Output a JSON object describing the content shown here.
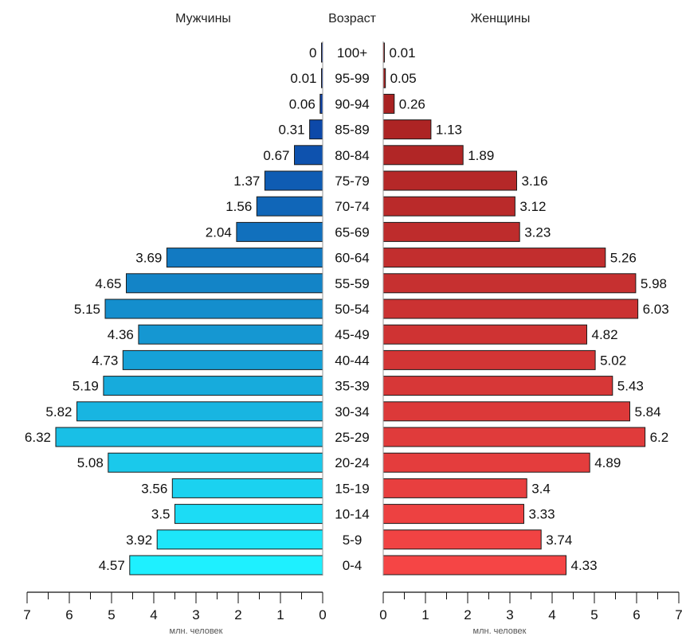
{
  "chart_data": {
    "type": "bar",
    "orientation": "horizontal",
    "layout": "population-pyramid",
    "headers": {
      "left": "Мужчины",
      "center": "Возраст",
      "right": "Женщины"
    },
    "categories": [
      "100+",
      "95-99",
      "90-94",
      "85-89",
      "80-84",
      "75-79",
      "70-74",
      "65-69",
      "60-64",
      "55-59",
      "50-54",
      "45-49",
      "40-44",
      "35-39",
      "30-34",
      "25-29",
      "20-24",
      "15-19",
      "10-14",
      "5-9",
      "0-4"
    ],
    "series": [
      {
        "name": "Мужчины",
        "values": [
          0,
          0.01,
          0.06,
          0.31,
          0.67,
          1.37,
          1.56,
          2.04,
          3.69,
          4.65,
          5.15,
          4.36,
          4.73,
          5.19,
          5.82,
          6.32,
          5.08,
          3.56,
          3.5,
          3.92,
          4.57
        ],
        "labels": [
          "0",
          "0.01",
          "0.06",
          "0.31",
          "0.67",
          "1.37",
          "1.56",
          "2.04",
          "3.69",
          "4.65",
          "5.15",
          "4.36",
          "4.73",
          "5.19",
          "5.82",
          "6.32",
          "5.08",
          "3.56",
          "3.5",
          "3.92",
          "4.57"
        ],
        "color_top": "#0A2B9A",
        "color_bottom": "#1EF0FF"
      },
      {
        "name": "Женщины",
        "values": [
          0.01,
          0.05,
          0.26,
          1.13,
          1.89,
          3.16,
          3.12,
          3.23,
          5.26,
          5.98,
          6.03,
          4.82,
          5.02,
          5.43,
          5.84,
          6.2,
          4.89,
          3.4,
          3.33,
          3.74,
          4.33
        ],
        "labels": [
          "0.01",
          "0.05",
          "0.26",
          "1.13",
          "1.89",
          "3.16",
          "3.12",
          "3.23",
          "5.26",
          "5.98",
          "6.03",
          "4.82",
          "5.02",
          "5.43",
          "5.84",
          "6.2",
          "4.89",
          "3.4",
          "3.33",
          "3.74",
          "4.33"
        ],
        "color_top": "#A01E1E",
        "color_bottom": "#F54545"
      }
    ],
    "xlim": [
      0,
      7
    ],
    "xticks": [
      "0",
      "1",
      "2",
      "3",
      "4",
      "5",
      "6",
      "7"
    ],
    "xlabel": "млн. человек",
    "grid": false,
    "legend": "none"
  }
}
